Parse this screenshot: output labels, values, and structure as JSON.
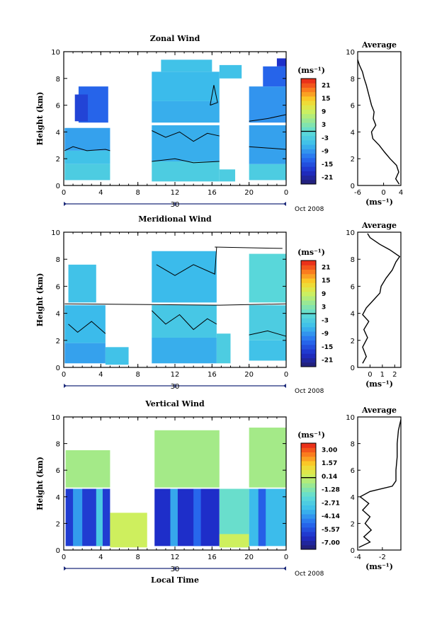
{
  "chart_data": [
    {
      "type": "heatmap",
      "title": "Zonal Wind",
      "ylabel": "Height (km)",
      "xlim": [
        0,
        24
      ],
      "ylim": [
        0,
        10
      ],
      "xticks": [
        "0",
        "4",
        "8",
        "12",
        "16",
        "20",
        "0"
      ],
      "yticks": [
        "0",
        "2",
        "4",
        "6",
        "8",
        "10"
      ],
      "day_label": "30",
      "date_label": "Oct 2008",
      "colorbar": {
        "unit": "(ms⁻¹)",
        "ticks": [
          "21",
          "15",
          "9",
          "3",
          "-3",
          "-9",
          "-15",
          "-21"
        ],
        "range": [
          -24,
          24
        ]
      },
      "blocks": [
        {
          "t": [
            0.1,
            5.0
          ],
          "h": [
            0.4,
            1.6
          ],
          "v": -3
        },
        {
          "t": [
            0.1,
            5.0
          ],
          "h": [
            1.6,
            2.6
          ],
          "v": -5
        },
        {
          "t": [
            0.1,
            5.0
          ],
          "h": [
            2.6,
            4.3
          ],
          "v": -8
        },
        {
          "t": [
            1.6,
            4.8
          ],
          "h": [
            4.7,
            7.4
          ],
          "v": -13
        },
        {
          "t": [
            1.2,
            2.6
          ],
          "h": [
            4.8,
            6.8
          ],
          "v": -16
        },
        {
          "t": [
            9.5,
            16.8
          ],
          "h": [
            0.3,
            1.8
          ],
          "v": -3
        },
        {
          "t": [
            9.5,
            16.8
          ],
          "h": [
            1.8,
            4.5
          ],
          "v": -7
        },
        {
          "t": [
            9.5,
            16.8
          ],
          "h": [
            4.7,
            6.3
          ],
          "v": -7
        },
        {
          "t": [
            9.5,
            16.8
          ],
          "h": [
            6.3,
            8.5
          ],
          "v": -6
        },
        {
          "t": [
            10.5,
            16.0
          ],
          "h": [
            8.5,
            9.4
          ],
          "v": -5
        },
        {
          "t": [
            16.8,
            19.2
          ],
          "h": [
            8.0,
            9.0
          ],
          "v": -5
        },
        {
          "t": [
            16.8,
            18.5
          ],
          "h": [
            0.3,
            1.2
          ],
          "v": -3
        },
        {
          "t": [
            20.0,
            24.0
          ],
          "h": [
            0.4,
            1.6
          ],
          "v": -3
        },
        {
          "t": [
            20.0,
            24.0
          ],
          "h": [
            1.6,
            4.5
          ],
          "v": -8
        },
        {
          "t": [
            20.0,
            24.0
          ],
          "h": [
            4.7,
            7.4
          ],
          "v": -9
        },
        {
          "t": [
            21.5,
            24.0
          ],
          "h": [
            7.4,
            8.9
          ],
          "v": -13
        },
        {
          "t": [
            23.0,
            24.0
          ],
          "h": [
            8.9,
            9.5
          ],
          "v": -18
        }
      ],
      "contours": [
        [
          [
            0.1,
            2.6
          ],
          [
            1.0,
            2.9
          ],
          [
            2.5,
            2.6
          ],
          [
            4.5,
            2.7
          ],
          [
            5.0,
            2.6
          ]
        ],
        [
          [
            9.5,
            1.8
          ],
          [
            12,
            2.0
          ],
          [
            14,
            1.7
          ],
          [
            16.8,
            1.8
          ]
        ],
        [
          [
            9.5,
            4.1
          ],
          [
            11,
            3.6
          ],
          [
            12.5,
            4.0
          ],
          [
            14,
            3.3
          ],
          [
            15.5,
            3.9
          ],
          [
            16.8,
            3.7
          ]
        ],
        [
          [
            15.8,
            6.0
          ],
          [
            16.2,
            7.5
          ],
          [
            16.6,
            6.2
          ],
          [
            15.8,
            6.0
          ]
        ],
        [
          [
            20.0,
            4.8
          ],
          [
            22,
            5.0
          ],
          [
            24,
            5.3
          ]
        ],
        [
          [
            20.0,
            2.9
          ],
          [
            22,
            2.8
          ],
          [
            24,
            2.7
          ]
        ]
      ],
      "profile": {
        "xlim": [
          -6,
          4
        ],
        "xticks": [
          "-6",
          "0",
          "4"
        ],
        "xlabel": "(ms⁻¹)",
        "title": "Average",
        "points": [
          [
            3.6,
            0.1
          ],
          [
            2.8,
            0.5
          ],
          [
            3.5,
            1.0
          ],
          [
            3.0,
            1.5
          ],
          [
            1.5,
            2.0
          ],
          [
            0.2,
            2.5
          ],
          [
            -1.0,
            3.0
          ],
          [
            -2.5,
            3.5
          ],
          [
            -2.8,
            4.0
          ],
          [
            -1.8,
            4.5
          ],
          [
            -2.4,
            5.0
          ],
          [
            -2.2,
            5.5
          ],
          [
            -2.8,
            6.0
          ],
          [
            -3.2,
            6.5
          ],
          [
            -3.6,
            7.0
          ],
          [
            -4.0,
            7.5
          ],
          [
            -4.5,
            8.0
          ],
          [
            -4.9,
            8.5
          ],
          [
            -5.6,
            9.0
          ],
          [
            -6.0,
            9.4
          ]
        ]
      }
    },
    {
      "type": "heatmap",
      "title": "Meridional Wind",
      "ylabel": "Height (km)",
      "xlim": [
        0,
        24
      ],
      "ylim": [
        0,
        10
      ],
      "xticks": [
        "0",
        "4",
        "8",
        "12",
        "16",
        "20",
        "0"
      ],
      "yticks": [
        "0",
        "2",
        "4",
        "6",
        "8",
        "10"
      ],
      "day_label": "30",
      "date_label": "Oct 2008",
      "colorbar": {
        "unit": "(ms⁻¹)",
        "ticks": [
          "21",
          "15",
          "9",
          "3",
          "-3",
          "-9",
          "-15",
          "-21"
        ],
        "range": [
          -24,
          24
        ]
      },
      "blocks": [
        {
          "t": [
            0.1,
            4.5
          ],
          "h": [
            0.3,
            1.8
          ],
          "v": -8
        },
        {
          "t": [
            0.1,
            4.5
          ],
          "h": [
            1.8,
            4.6
          ],
          "v": -6
        },
        {
          "t": [
            0.5,
            3.5
          ],
          "h": [
            4.8,
            7.6
          ],
          "v": -5
        },
        {
          "t": [
            4.5,
            7.0
          ],
          "h": [
            0.2,
            1.5
          ],
          "v": -5
        },
        {
          "t": [
            9.5,
            16.5
          ],
          "h": [
            0.3,
            2.2
          ],
          "v": -7
        },
        {
          "t": [
            9.5,
            16.5
          ],
          "h": [
            2.2,
            4.6
          ],
          "v": -4
        },
        {
          "t": [
            9.5,
            16.5
          ],
          "h": [
            4.8,
            8.6
          ],
          "v": -6
        },
        {
          "t": [
            16.5,
            18.0
          ],
          "h": [
            0.3,
            2.5
          ],
          "v": -3
        },
        {
          "t": [
            20.0,
            24.0
          ],
          "h": [
            0.5,
            2.0
          ],
          "v": -5
        },
        {
          "t": [
            20.0,
            24.0
          ],
          "h": [
            2.0,
            4.6
          ],
          "v": -3
        },
        {
          "t": [
            20.0,
            24.0
          ],
          "h": [
            4.8,
            8.4
          ],
          "v": -1
        }
      ],
      "contours": [
        [
          [
            0.1,
            4.7
          ],
          [
            16.8,
            4.6
          ],
          [
            24,
            4.7
          ]
        ],
        [
          [
            16.3,
            8.9
          ],
          [
            23.6,
            8.8
          ]
        ],
        [
          [
            9.5,
            4.2
          ],
          [
            11,
            3.2
          ],
          [
            12.5,
            3.9
          ],
          [
            14,
            2.8
          ],
          [
            15.5,
            3.6
          ],
          [
            16.5,
            3.2
          ]
        ],
        [
          [
            0.5,
            3.2
          ],
          [
            1.5,
            2.6
          ],
          [
            3.0,
            3.4
          ],
          [
            4.5,
            2.5
          ]
        ],
        [
          [
            10.0,
            7.6
          ],
          [
            12,
            6.8
          ],
          [
            14,
            7.6
          ],
          [
            16.3,
            6.9
          ],
          [
            16.5,
            8.9
          ]
        ],
        [
          [
            20.0,
            2.4
          ],
          [
            22,
            2.7
          ],
          [
            24,
            2.3
          ]
        ]
      ],
      "profile": {
        "xlim": [
          -1,
          2.5
        ],
        "xticks": [
          "0",
          "1",
          "2"
        ],
        "xlabel": "(ms⁻¹)",
        "title": "Average",
        "points": [
          [
            -0.6,
            0.3
          ],
          [
            -0.3,
            0.8
          ],
          [
            -0.6,
            1.5
          ],
          [
            -0.2,
            2.2
          ],
          [
            -0.5,
            2.8
          ],
          [
            -0.1,
            3.4
          ],
          [
            -0.6,
            3.9
          ],
          [
            -0.3,
            4.4
          ],
          [
            0.3,
            5.0
          ],
          [
            0.8,
            5.5
          ],
          [
            0.9,
            6.0
          ],
          [
            1.3,
            6.6
          ],
          [
            1.8,
            7.2
          ],
          [
            2.1,
            7.8
          ],
          [
            2.4,
            8.2
          ],
          [
            1.6,
            8.7
          ],
          [
            0.8,
            9.1
          ],
          [
            0.0,
            9.6
          ],
          [
            -0.2,
            9.9
          ]
        ]
      }
    },
    {
      "type": "heatmap",
      "title": "Vertical Wind",
      "xlabel": "Local Time",
      "ylabel": "Height (km)",
      "xlim": [
        0,
        24
      ],
      "ylim": [
        0,
        10
      ],
      "xticks": [
        "0",
        "4",
        "8",
        "12",
        "16",
        "20",
        "0"
      ],
      "yticks": [
        "0",
        "2",
        "4",
        "6",
        "8",
        "10"
      ],
      "day_label": "30",
      "date_label": "Oct 2008",
      "colorbar": {
        "unit": "(ms⁻¹)",
        "ticks": [
          "3.00",
          "1.57",
          "0.14",
          "-1.28",
          "-2.71",
          "-4.14",
          "-5.57",
          "-7.00"
        ],
        "range": [
          -7.7,
          3.7
        ]
      },
      "blocks": [
        {
          "t": [
            0.2,
            5.0
          ],
          "h": [
            0.3,
            4.6
          ],
          "v": -6.0
        },
        {
          "t": [
            1.0,
            2.0
          ],
          "h": [
            0.3,
            4.6
          ],
          "v": -4.0
        },
        {
          "t": [
            3.5,
            4.2
          ],
          "h": [
            0.3,
            4.6
          ],
          "v": -2.8
        },
        {
          "t": [
            0.2,
            5.0
          ],
          "h": [
            4.7,
            7.5
          ],
          "v": -0.6
        },
        {
          "t": [
            5.0,
            9.0
          ],
          "h": [
            0.2,
            2.8
          ],
          "v": 0.2
        },
        {
          "t": [
            9.8,
            16.8
          ],
          "h": [
            0.3,
            4.6
          ],
          "v": -6.3
        },
        {
          "t": [
            11.5,
            12.3
          ],
          "h": [
            0.3,
            4.6
          ],
          "v": -3.8
        },
        {
          "t": [
            14.0,
            14.8
          ],
          "h": [
            0.3,
            4.6
          ],
          "v": -5.0
        },
        {
          "t": [
            9.8,
            16.8
          ],
          "h": [
            4.7,
            9.0
          ],
          "v": -0.6
        },
        {
          "t": [
            16.8,
            20.0
          ],
          "h": [
            0.2,
            4.6
          ],
          "v": -1.8
        },
        {
          "t": [
            16.8,
            20.0
          ],
          "h": [
            0.2,
            1.2
          ],
          "v": 0.2
        },
        {
          "t": [
            20.0,
            24.0
          ],
          "h": [
            0.3,
            4.6
          ],
          "v": -3.4
        },
        {
          "t": [
            21.0,
            21.8
          ],
          "h": [
            0.3,
            4.6
          ],
          "v": -5.2
        },
        {
          "t": [
            20.0,
            24.0
          ],
          "h": [
            4.7,
            9.2
          ],
          "v": -0.6
        }
      ],
      "contours": [],
      "profile": {
        "xlim": [
          -4,
          -0.5
        ],
        "xticks": [
          "-4",
          "-2"
        ],
        "xlabel": "(ms⁻¹)",
        "title": "Average",
        "points": [
          [
            -3.9,
            0.2
          ],
          [
            -3.0,
            0.6
          ],
          [
            -3.5,
            1.0
          ],
          [
            -2.9,
            1.5
          ],
          [
            -3.4,
            2.0
          ],
          [
            -3.0,
            2.5
          ],
          [
            -3.6,
            3.0
          ],
          [
            -3.1,
            3.5
          ],
          [
            -3.8,
            4.0
          ],
          [
            -3.0,
            4.4
          ],
          [
            -1.2,
            4.8
          ],
          [
            -0.9,
            5.2
          ],
          [
            -0.9,
            6.0
          ],
          [
            -0.8,
            7.0
          ],
          [
            -0.8,
            8.0
          ],
          [
            -0.7,
            9.0
          ],
          [
            -0.5,
            9.8
          ]
        ]
      }
    }
  ]
}
